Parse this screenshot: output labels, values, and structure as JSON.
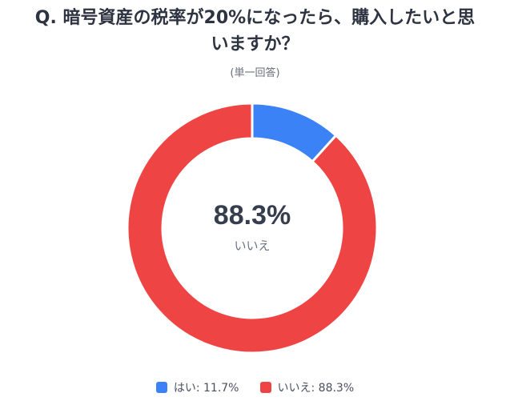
{
  "title": "Q. 暗号資産の税率が20%になったら、購入したいと思いますか？",
  "title_line1": "Q. 暗号資産の税率が20%になったら、購入したいと思",
  "title_line2": "いますか？",
  "subtitle": "(単一回答)",
  "center": {
    "value": "88.3%",
    "label": "いいえ"
  },
  "legend": [
    {
      "label": "はい: 11.7%",
      "color": "#3b82f6"
    },
    {
      "label": "いいえ: 88.3%",
      "color": "#ef4444"
    }
  ],
  "chart_data": {
    "type": "pie",
    "subtype": "donut",
    "title": "Q. 暗号資産の税率が20%になったら、購入したいと思いますか？",
    "subtitle": "(単一回答)",
    "categories": [
      "はい",
      "いいえ"
    ],
    "values": [
      11.7,
      88.3
    ],
    "colors": [
      "#3b82f6",
      "#ef4444"
    ],
    "center_text": "88.3%",
    "center_label": "いいえ",
    "legend_position": "bottom"
  }
}
